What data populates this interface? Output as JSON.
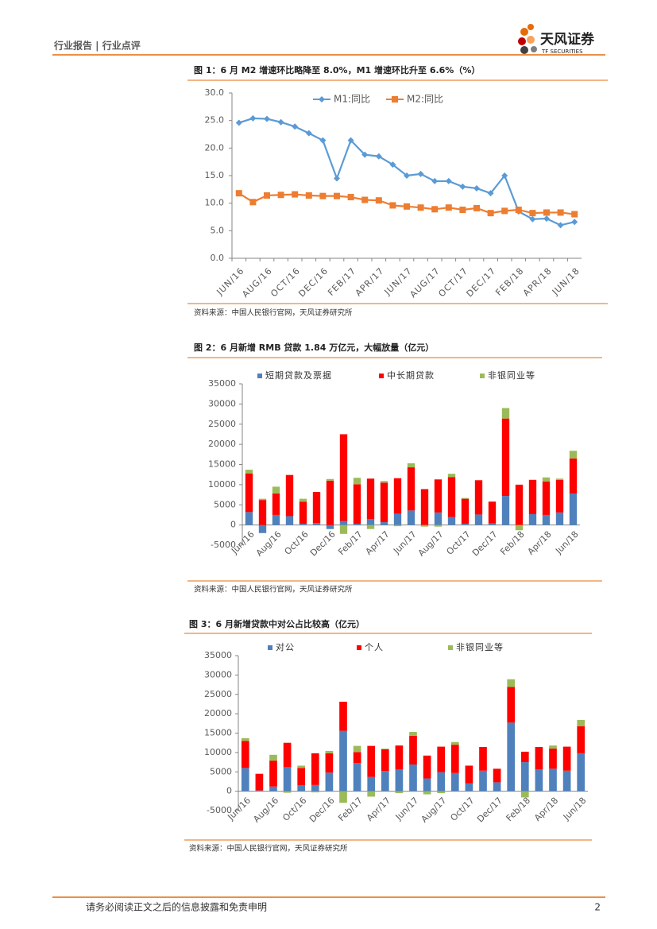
{
  "header": {
    "section": "行业报告 | 行业点评",
    "brand": "天风证券",
    "brand_en": "TF SECURITIES"
  },
  "footer": {
    "disclaimer": "请务必阅读正文之后的信息披露和免责申明",
    "page": "2"
  },
  "chart_data": [
    {
      "type": "line",
      "title": "图 1：6 月 M2 增速环比略降至 8.0%，M1 增速环比升至 6.6%（%）",
      "source": "资料来源：中国人民银行官网，天风证券研究所",
      "categories": [
        "JUN/16",
        null,
        "AUG/16",
        null,
        "OCT/16",
        null,
        "DEC/16",
        null,
        "FEB/17",
        null,
        "APR/17",
        null,
        "JUN/17",
        null,
        "AUG/17",
        null,
        "OCT/17",
        null,
        "DEC/17",
        null,
        "FEB/18",
        null,
        "APR/18",
        null,
        "JUN/18"
      ],
      "series": [
        {
          "name": "M1:同比",
          "color": "#5b9bd5",
          "marker": "diamond",
          "values": [
            24.6,
            25.4,
            25.3,
            24.7,
            23.9,
            22.7,
            21.4,
            14.5,
            21.4,
            18.8,
            18.5,
            17.0,
            15.0,
            15.3,
            14.0,
            14.0,
            13.0,
            12.7,
            11.8,
            15.0,
            8.5,
            7.1,
            7.2,
            6.0,
            6.6
          ]
        },
        {
          "name": "M2:同比",
          "color": "#ed7d31",
          "marker": "square",
          "values": [
            11.8,
            10.2,
            11.4,
            11.5,
            11.6,
            11.4,
            11.3,
            11.3,
            11.1,
            10.6,
            10.5,
            9.6,
            9.4,
            9.2,
            8.9,
            9.2,
            8.8,
            9.1,
            8.2,
            8.6,
            8.8,
            8.2,
            8.3,
            8.3,
            8.0
          ]
        }
      ],
      "ylim": [
        0,
        30
      ],
      "yticks": [
        {
          "value": 0,
          "label": "0.0"
        },
        {
          "value": 5,
          "label": "5.0"
        },
        {
          "value": 10,
          "label": "10.0"
        },
        {
          "value": 15,
          "label": "15.0"
        },
        {
          "value": 20,
          "label": "20.0"
        },
        {
          "value": 25,
          "label": "25.0"
        },
        {
          "value": 30,
          "label": "30.0"
        }
      ],
      "legend": "top"
    },
    {
      "type": "stacked_bar",
      "title": "图 2：6 月新增 RMB 贷款 1.84 万亿元，大幅放量（亿元）",
      "source": "资料来源：中国人民银行官网，天风证券研究所",
      "categories": [
        "Jun/16",
        null,
        "Aug/16",
        null,
        "Oct/16",
        null,
        "Dec/16",
        null,
        "Feb/17",
        null,
        "Apr/17",
        null,
        "Jun/17",
        null,
        "Aug/17",
        null,
        "Oct/17",
        null,
        "Dec/17",
        null,
        "Feb/18",
        null,
        "Apr/18",
        null,
        "Jun/18"
      ],
      "series": [
        {
          "name": "短期贷款及票据",
          "color": "#4f81bd",
          "values": [
            3200,
            -2000,
            2500,
            2200,
            300,
            500,
            -1000,
            1000,
            300,
            1500,
            700,
            2800,
            3600,
            0,
            3100,
            2000,
            300,
            2600,
            400,
            7200,
            0,
            2700,
            2500,
            3100,
            7800
          ]
        },
        {
          "name": "中长期贷款",
          "color": "#ff0000",
          "values": [
            9600,
            6200,
            5300,
            10200,
            5500,
            7700,
            11000,
            21500,
            9800,
            10000,
            9800,
            8800,
            10700,
            8900,
            8200,
            9900,
            6200,
            8500,
            5400,
            19200,
            10000,
            8500,
            8300,
            8100,
            8700
          ]
        },
        {
          "name": "非银同业等",
          "color": "#9bbb59",
          "values": [
            900,
            300,
            1700,
            0,
            700,
            0,
            400,
            -2200,
            1600,
            -1000,
            400,
            -300,
            1000,
            -400,
            -400,
            800,
            200,
            0,
            0,
            2600,
            -1300,
            0,
            1000,
            300,
            1900
          ]
        }
      ],
      "ylim": [
        -5000,
        35000
      ],
      "yticks": [
        -5000,
        0,
        5000,
        10000,
        15000,
        20000,
        25000,
        30000,
        35000
      ],
      "legend": "top"
    },
    {
      "type": "stacked_bar",
      "title": "图 3：6 月新增贷款中对公占比较高（亿元）",
      "source": "资料来源：中国人民银行官网，天风证券研究所",
      "categories": [
        "Jun/16",
        null,
        "Aug/16",
        null,
        "Oct/16",
        null,
        "Dec/16",
        null,
        "Feb/17",
        null,
        "Apr/17",
        null,
        "Jun/17",
        null,
        "Aug/17",
        null,
        "Oct/17",
        null,
        "Dec/17",
        null,
        "Feb/18",
        null,
        "Apr/18",
        null,
        "Jun/18"
      ],
      "series": [
        {
          "name": "对公",
          "color": "#4f81bd",
          "values": [
            6000,
            200,
            1200,
            6200,
            1500,
            1600,
            4800,
            15600,
            7300,
            3700,
            5200,
            5600,
            6900,
            3300,
            4900,
            4700,
            2000,
            5300,
            2300,
            17700,
            7500,
            5600,
            5800,
            5300,
            9800
          ]
        },
        {
          "name": "个人",
          "color": "#ff0000",
          "values": [
            7000,
            4300,
            6700,
            6300,
            4500,
            8200,
            5000,
            7500,
            2800,
            8000,
            5600,
            6200,
            7400,
            5900,
            6600,
            7300,
            4600,
            6100,
            3500,
            9200,
            2700,
            5800,
            5200,
            6200,
            7000
          ]
        },
        {
          "name": "非银同业等",
          "color": "#9bbb59",
          "values": [
            700,
            0,
            1500,
            -400,
            600,
            -300,
            600,
            -3000,
            1600,
            -1400,
            200,
            -500,
            1000,
            -800,
            -500,
            700,
            0,
            0,
            0,
            2000,
            -1600,
            0,
            800,
            0,
            1600
          ]
        }
      ],
      "ylim": [
        -5000,
        35000
      ],
      "yticks": [
        -5000,
        0,
        5000,
        10000,
        15000,
        20000,
        25000,
        30000,
        35000
      ],
      "legend": "top"
    }
  ]
}
